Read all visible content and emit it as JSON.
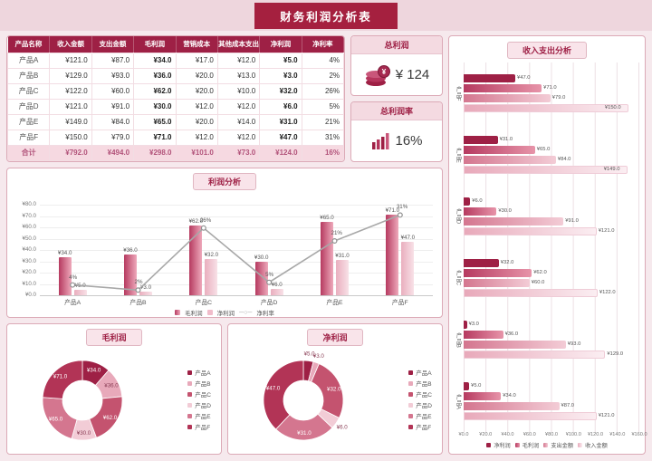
{
  "colors": {
    "maroon": "#9e2045",
    "title_bg": "#a5203f",
    "panel_border": "#dcaab7",
    "donut_palette": [
      "#9e2045",
      "#e8a9ba",
      "#c4536f",
      "#f2ccd6",
      "#d4768f",
      "#b23456"
    ],
    "donut_text_dark": [
      false,
      true,
      false,
      true,
      false,
      false
    ],
    "hbar_series_colors": [
      "#9e2045",
      "linear-gradient(90deg,#b63a60,#e794a9)",
      "linear-gradient(90deg,#d4768f,#f3ccd6)",
      "linear-gradient(90deg,#e8a9ba,#fbeef2)"
    ],
    "line_color": "#a8a8a8"
  },
  "header": {
    "title": "财务利润分析表"
  },
  "table": {
    "headers": [
      "产品名称",
      "收入金额",
      "支出金额",
      "毛利润",
      "营销成本",
      "其他成本支出",
      "净利润",
      "净利率"
    ],
    "rows": [
      [
        "产品A",
        "¥121.0",
        "¥87.0",
        "¥34.0",
        "¥17.0",
        "¥12.0",
        "¥5.0",
        "4%"
      ],
      [
        "产品B",
        "¥129.0",
        "¥93.0",
        "¥36.0",
        "¥20.0",
        "¥13.0",
        "¥3.0",
        "2%"
      ],
      [
        "产品C",
        "¥122.0",
        "¥60.0",
        "¥62.0",
        "¥20.0",
        "¥10.0",
        "¥32.0",
        "26%"
      ],
      [
        "产品D",
        "¥121.0",
        "¥91.0",
        "¥30.0",
        "¥12.0",
        "¥12.0",
        "¥6.0",
        "5%"
      ],
      [
        "产品E",
        "¥149.0",
        "¥84.0",
        "¥65.0",
        "¥20.0",
        "¥14.0",
        "¥31.0",
        "21%"
      ],
      [
        "产品F",
        "¥150.0",
        "¥79.0",
        "¥71.0",
        "¥12.0",
        "¥12.0",
        "¥47.0",
        "31%"
      ]
    ],
    "total": [
      "合计",
      "¥792.0",
      "¥494.0",
      "¥298.0",
      "¥101.0",
      "¥73.0",
      "¥124.0",
      "16%"
    ]
  },
  "kpis": {
    "profit": {
      "label": "总利润",
      "value": "¥ 124",
      "icon": "coins-icon"
    },
    "margin": {
      "label": "总利润率",
      "value": "16%",
      "icon": "bar-chart-icon"
    }
  },
  "chart_data": [
    {
      "id": "profit_analysis",
      "type": "bar",
      "subtype": "bar+line-combo",
      "title": "利润分析",
      "categories": [
        "产品A",
        "产品B",
        "产品C",
        "产品D",
        "产品E",
        "产品F"
      ],
      "series": [
        {
          "name": "毛利润",
          "kind": "bar",
          "values": [
            34,
            36,
            62,
            30,
            65,
            71
          ]
        },
        {
          "name": "净利润",
          "kind": "bar",
          "values": [
            5,
            3,
            32,
            6,
            31,
            47
          ]
        },
        {
          "name": "净利率",
          "kind": "line",
          "values_pct": [
            4,
            2,
            26,
            5,
            21,
            31
          ]
        }
      ],
      "ylim": [
        0,
        80
      ],
      "y2lim": [
        0,
        35
      ],
      "yticks": [
        "¥0.0",
        "¥10.0",
        "¥20.0",
        "¥30.0",
        "¥40.0",
        "¥50.0",
        "¥60.0",
        "¥70.0",
        "¥80.0"
      ],
      "legend": [
        "毛利润",
        "净利润",
        "净利率"
      ],
      "grid": true
    },
    {
      "id": "gross_profit_donut",
      "type": "pie",
      "subtype": "donut",
      "title": "毛利润",
      "categories": [
        "产品A",
        "产品B",
        "产品C",
        "产品D",
        "产品E",
        "产品F"
      ],
      "values": [
        34,
        36,
        62,
        30,
        65,
        71
      ],
      "labels": [
        "¥34.0",
        "¥36.0",
        "¥62.0",
        "¥30.0",
        "¥65.0",
        "¥71.0"
      ],
      "legend_position": "right"
    },
    {
      "id": "net_profit_donut",
      "type": "pie",
      "subtype": "donut",
      "title": "净利润",
      "categories": [
        "产品A",
        "产品B",
        "产品C",
        "产品D",
        "产品E",
        "产品F"
      ],
      "values": [
        5,
        3,
        32,
        6,
        31,
        47
      ],
      "labels": [
        "¥5.0",
        "¥3.0",
        "¥32.0",
        "¥6.0",
        "¥31.0",
        "¥47.0"
      ],
      "legend_position": "right"
    },
    {
      "id": "income_expense",
      "type": "bar",
      "orientation": "horizontal",
      "title": "收入支出分析",
      "categories": [
        "产品F",
        "产品E",
        "产品D",
        "产品C",
        "产品B",
        "产品A"
      ],
      "series": [
        {
          "name": "净利润",
          "values": [
            47,
            31,
            6,
            32,
            3,
            5
          ]
        },
        {
          "name": "毛利润",
          "values": [
            71,
            65,
            30,
            62,
            36,
            34
          ]
        },
        {
          "name": "支出金额",
          "values": [
            79,
            84,
            91,
            60,
            93,
            87
          ]
        },
        {
          "name": "收入金额",
          "values": [
            150,
            149,
            121,
            122,
            129,
            121
          ]
        }
      ],
      "xlim": [
        0,
        160
      ],
      "xticks": [
        "¥0.0",
        "¥20.0",
        "¥40.0",
        "¥60.0",
        "¥80.0",
        "¥100.0",
        "¥120.0",
        "¥140.0",
        "¥160.0"
      ],
      "legend": [
        "净利润",
        "毛利润",
        "支出金额",
        "收入金额"
      ],
      "grid": true
    }
  ]
}
